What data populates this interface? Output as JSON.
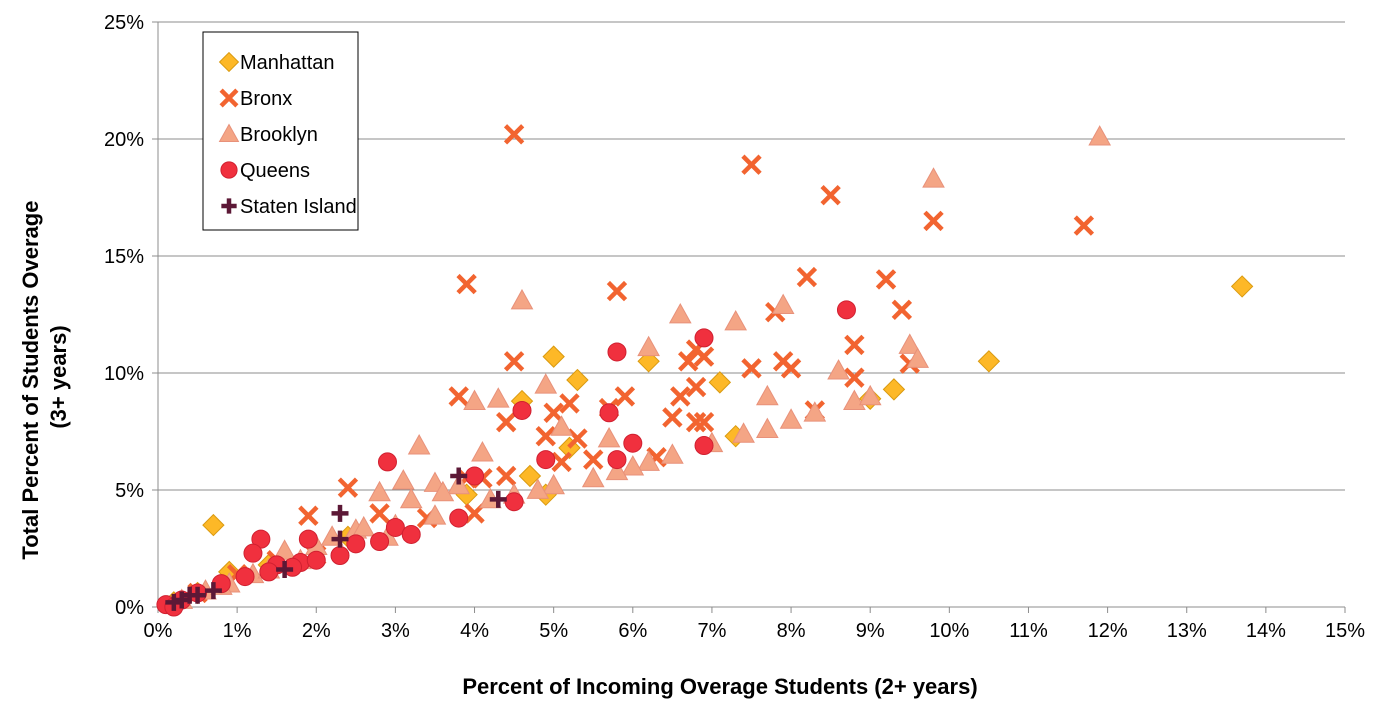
{
  "chart_data": {
    "type": "scatter",
    "title": "",
    "xlabel": "Percent of Incoming Overage Students (2+ years)",
    "ylabel_line1": "Total Percent of Students Overage",
    "ylabel_line2": "(3+ years)",
    "xlim": [
      0,
      15
    ],
    "ylim": [
      0,
      25
    ],
    "x_ticks": [
      0,
      1,
      2,
      3,
      4,
      5,
      6,
      7,
      8,
      9,
      10,
      11,
      12,
      13,
      14,
      15
    ],
    "x_tick_labels": [
      "0%",
      "1%",
      "2%",
      "3%",
      "4%",
      "5%",
      "6%",
      "7%",
      "8%",
      "9%",
      "10%",
      "11%",
      "12%",
      "13%",
      "14%",
      "15%"
    ],
    "y_ticks": [
      0,
      5,
      10,
      15,
      20,
      25
    ],
    "y_tick_labels": [
      "0%",
      "5%",
      "10%",
      "15%",
      "20%",
      "25%"
    ],
    "grid": "horizontal",
    "legend_position": "top-left",
    "series": [
      {
        "name": "Manhattan",
        "marker": "diamond",
        "color": "#FDB827",
        "stroke": "#D99A10",
        "points": [
          [
            0.7,
            3.5
          ],
          [
            0.9,
            1.5
          ],
          [
            3.9,
            4.8
          ],
          [
            4.6,
            8.8
          ],
          [
            4.7,
            5.6
          ],
          [
            5.0,
            10.7
          ],
          [
            5.2,
            6.8
          ],
          [
            5.3,
            9.7
          ],
          [
            6.2,
            10.5
          ],
          [
            7.1,
            9.6
          ],
          [
            7.3,
            7.3
          ],
          [
            9.0,
            8.9
          ],
          [
            9.3,
            9.3
          ],
          [
            10.5,
            10.5
          ],
          [
            13.7,
            13.7
          ],
          [
            0.2,
            0.2
          ],
          [
            0.5,
            0.6
          ],
          [
            1.4,
            1.8
          ],
          [
            2.4,
            3.0
          ],
          [
            4.9,
            4.8
          ]
        ]
      },
      {
        "name": "Bronx",
        "marker": "x",
        "color": "#F26430",
        "stroke": "#F26430",
        "points": [
          [
            4.5,
            20.2
          ],
          [
            7.5,
            18.9
          ],
          [
            8.5,
            17.6
          ],
          [
            9.8,
            16.5
          ],
          [
            11.7,
            16.3
          ],
          [
            8.2,
            14.1
          ],
          [
            9.2,
            14.0
          ],
          [
            3.9,
            13.8
          ],
          [
            5.8,
            13.5
          ],
          [
            9.4,
            12.7
          ],
          [
            7.8,
            12.6
          ],
          [
            8.8,
            11.2
          ],
          [
            6.8,
            11.0
          ],
          [
            4.5,
            10.5
          ],
          [
            6.7,
            10.5
          ],
          [
            6.9,
            10.7
          ],
          [
            7.5,
            10.2
          ],
          [
            7.9,
            10.5
          ],
          [
            8.0,
            10.2
          ],
          [
            9.5,
            10.4
          ],
          [
            3.8,
            9.0
          ],
          [
            5.9,
            9.0
          ],
          [
            6.6,
            9.0
          ],
          [
            6.8,
            9.4
          ],
          [
            8.8,
            9.8
          ],
          [
            5.0,
            8.3
          ],
          [
            5.2,
            8.7
          ],
          [
            5.7,
            8.5
          ],
          [
            6.5,
            8.1
          ],
          [
            8.3,
            8.4
          ],
          [
            4.4,
            7.9
          ],
          [
            4.9,
            7.3
          ],
          [
            5.3,
            7.2
          ],
          [
            6.8,
            7.9
          ],
          [
            6.9,
            7.9
          ],
          [
            5.1,
            6.2
          ],
          [
            5.5,
            6.3
          ],
          [
            6.3,
            6.4
          ],
          [
            2.4,
            5.1
          ],
          [
            3.9,
            5.5
          ],
          [
            4.1,
            5.5
          ],
          [
            4.4,
            5.6
          ],
          [
            1.9,
            3.9
          ],
          [
            2.8,
            4.0
          ],
          [
            4.0,
            4.0
          ],
          [
            1.0,
            1.4
          ],
          [
            1.5,
            2.0
          ],
          [
            0.5,
            0.6
          ],
          [
            2.0,
            2.2
          ],
          [
            3.4,
            3.8
          ]
        ]
      },
      {
        "name": "Brooklyn",
        "marker": "triangle",
        "color": "#F4A585",
        "stroke": "#E8917A",
        "points": [
          [
            11.9,
            20.1
          ],
          [
            9.8,
            18.3
          ],
          [
            4.6,
            13.1
          ],
          [
            6.6,
            12.5
          ],
          [
            7.3,
            12.2
          ],
          [
            7.9,
            12.9
          ],
          [
            6.2,
            11.1
          ],
          [
            9.5,
            11.2
          ],
          [
            9.6,
            10.6
          ],
          [
            4.9,
            9.5
          ],
          [
            8.6,
            10.1
          ],
          [
            7.7,
            9.0
          ],
          [
            4.3,
            8.9
          ],
          [
            4.0,
            8.8
          ],
          [
            5.1,
            7.7
          ],
          [
            7.4,
            7.4
          ],
          [
            7.7,
            7.6
          ],
          [
            8.0,
            8.0
          ],
          [
            8.3,
            8.3
          ],
          [
            8.8,
            8.8
          ],
          [
            9.0,
            9.0
          ],
          [
            3.3,
            6.9
          ],
          [
            4.1,
            6.6
          ],
          [
            5.7,
            7.2
          ],
          [
            6.2,
            6.2
          ],
          [
            6.5,
            6.5
          ],
          [
            2.8,
            4.9
          ],
          [
            3.1,
            5.4
          ],
          [
            3.5,
            5.3
          ],
          [
            3.8,
            5.2
          ],
          [
            1.6,
            2.4
          ],
          [
            2.2,
            3.0
          ],
          [
            2.5,
            3.3
          ],
          [
            3.0,
            3.5
          ],
          [
            3.5,
            3.9
          ],
          [
            4.5,
            4.8
          ],
          [
            5.0,
            5.2
          ],
          [
            5.5,
            5.5
          ],
          [
            6.0,
            6.0
          ],
          [
            7.0,
            7.0
          ],
          [
            0.3,
            0.3
          ],
          [
            0.6,
            0.7
          ],
          [
            0.9,
            1.0
          ],
          [
            1.2,
            1.4
          ],
          [
            1.8,
            2.0
          ],
          [
            2.6,
            3.4
          ],
          [
            3.2,
            4.6
          ],
          [
            4.2,
            4.6
          ],
          [
            4.8,
            5.0
          ],
          [
            5.8,
            5.8
          ],
          [
            2.0,
            2.6
          ],
          [
            2.9,
            3.0
          ],
          [
            3.6,
            4.9
          ],
          [
            1.4,
            1.6
          ],
          [
            0.8,
            0.9
          ]
        ]
      },
      {
        "name": "Queens",
        "marker": "circle",
        "color": "#F0303E",
        "stroke": "#D02030",
        "points": [
          [
            8.7,
            12.7
          ],
          [
            6.9,
            11.5
          ],
          [
            5.8,
            10.9
          ],
          [
            4.6,
            8.4
          ],
          [
            5.7,
            8.3
          ],
          [
            4.9,
            6.3
          ],
          [
            5.8,
            6.3
          ],
          [
            6.0,
            7.0
          ],
          [
            6.9,
            6.9
          ],
          [
            2.9,
            6.2
          ],
          [
            4.0,
            5.6
          ],
          [
            4.5,
            4.5
          ],
          [
            3.8,
            3.8
          ],
          [
            3.0,
            3.4
          ],
          [
            3.2,
            3.1
          ],
          [
            2.8,
            2.8
          ],
          [
            1.3,
            2.9
          ],
          [
            1.9,
            2.9
          ],
          [
            2.3,
            2.2
          ],
          [
            1.8,
            1.9
          ],
          [
            1.2,
            2.3
          ],
          [
            1.5,
            1.8
          ],
          [
            2.0,
            2.0
          ],
          [
            1.1,
            1.3
          ],
          [
            0.8,
            1.0
          ],
          [
            0.5,
            0.6
          ],
          [
            0.3,
            0.3
          ],
          [
            0.1,
            0.1
          ],
          [
            0.2,
            0.0
          ],
          [
            2.5,
            2.7
          ],
          [
            1.4,
            1.5
          ],
          [
            1.7,
            1.7
          ]
        ]
      },
      {
        "name": "Staten Island",
        "marker": "plus",
        "color": "#5C1836",
        "stroke": "#5C1836",
        "points": [
          [
            3.8,
            5.6
          ],
          [
            4.3,
            4.6
          ],
          [
            2.3,
            4.0
          ],
          [
            2.3,
            2.9
          ],
          [
            1.6,
            1.6
          ],
          [
            0.7,
            0.7
          ],
          [
            0.5,
            0.5
          ],
          [
            0.3,
            0.3
          ],
          [
            0.4,
            0.5
          ],
          [
            0.2,
            0.2
          ]
        ]
      }
    ]
  }
}
